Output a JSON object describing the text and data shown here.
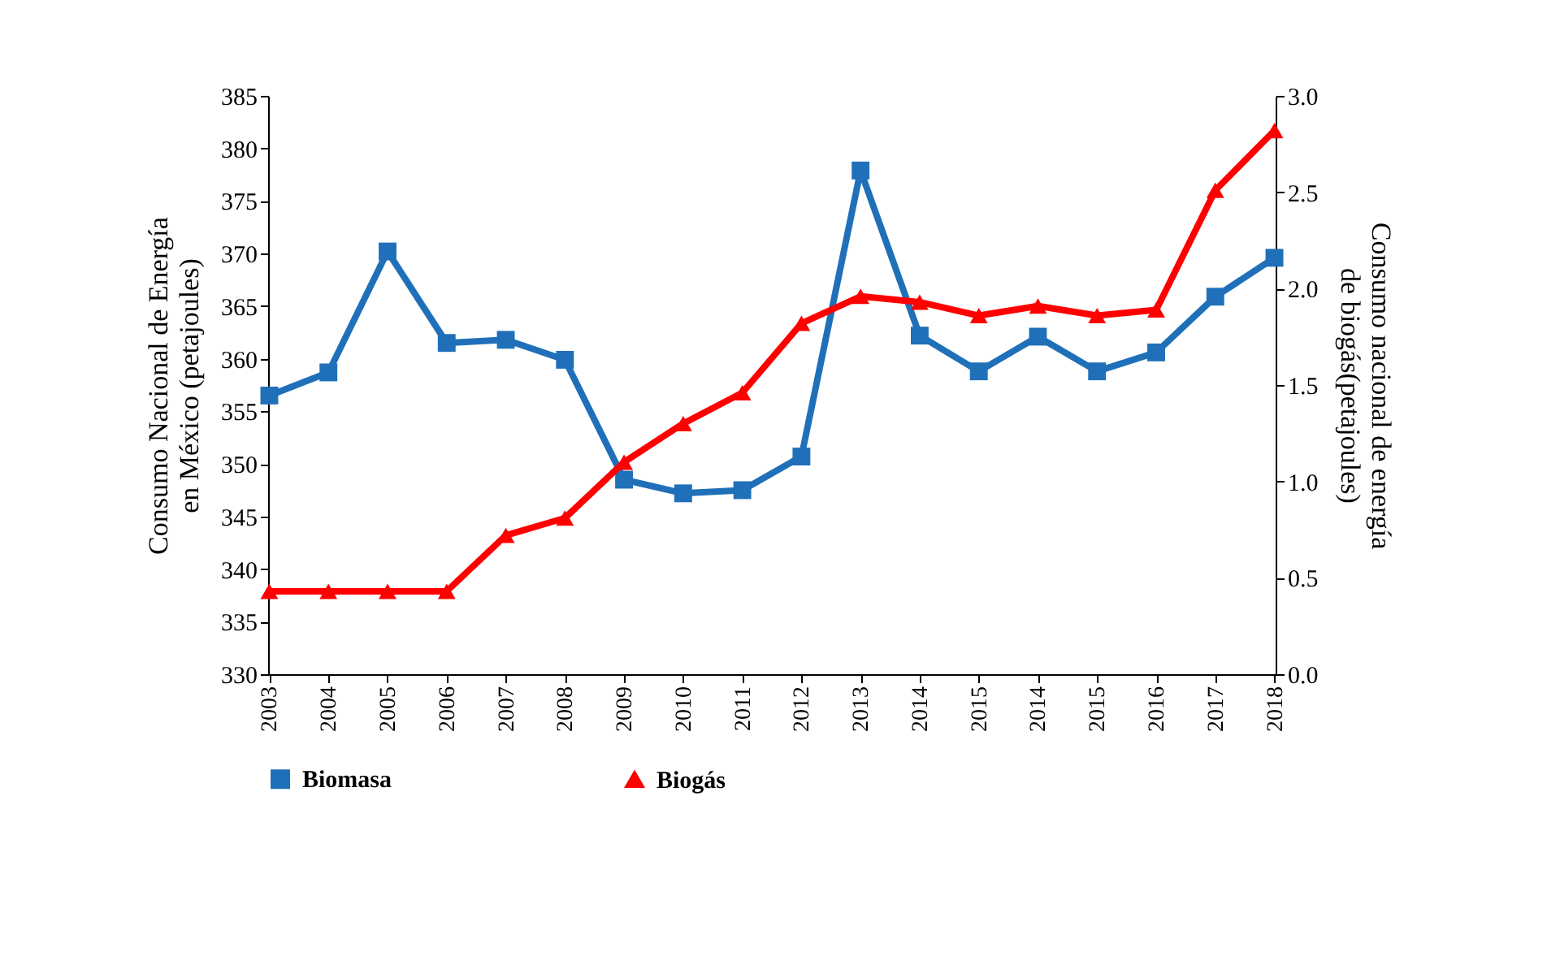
{
  "chart_data": {
    "type": "line",
    "categories": [
      "2003",
      "2004",
      "2005",
      "2006",
      "2007",
      "2008",
      "2009",
      "2010",
      "2011",
      "2012",
      "2013",
      "2014",
      "2015",
      "2014",
      "2015",
      "2016",
      "2017",
      "2018"
    ],
    "series": [
      {
        "name": "Biomasa",
        "color": "#1f70b9",
        "marker": "square",
        "values": [
          356.5,
          358.7,
          370.2,
          361.5,
          361.8,
          359.9,
          348.5,
          347.2,
          347.5,
          350.7,
          377.9,
          362.2,
          358.8,
          362.1,
          358.8,
          360.6,
          365.9,
          369.6
        ]
      },
      {
        "name": "Biogás",
        "color": "#ff0000",
        "marker": "triangle",
        "axis": "y2",
        "values": [
          0.43,
          0.43,
          0.43,
          0.43,
          0.72,
          0.81,
          1.1,
          1.3,
          1.46,
          1.82,
          1.96,
          1.93,
          1.86,
          1.91,
          1.86,
          1.89,
          2.51,
          2.82
        ]
      }
    ],
    "ylabel": "Consumo Nacional de Energía en México (petajoules)",
    "y2label": "Consumo nacional de energía de biogás(petajoules)",
    "ylim": [
      330,
      385
    ],
    "yticks": [
      330,
      335,
      340,
      345,
      350,
      355,
      360,
      365,
      370,
      375,
      380,
      385
    ],
    "y2lim": [
      0,
      3
    ],
    "y2ticks": [
      {
        "value": 0,
        "label": "0.0"
      },
      {
        "value": 0.5,
        "label": "0.5"
      },
      {
        "value": 1,
        "label": "1.0"
      },
      {
        "value": 1.5,
        "label": "1.5"
      },
      {
        "value": 2,
        "label": "2.0"
      },
      {
        "value": 2.5,
        "label": "2.5"
      },
      {
        "value": 3,
        "label": "3.0"
      }
    ],
    "grid": false,
    "legend": "bottom",
    "line_style": "solid"
  }
}
